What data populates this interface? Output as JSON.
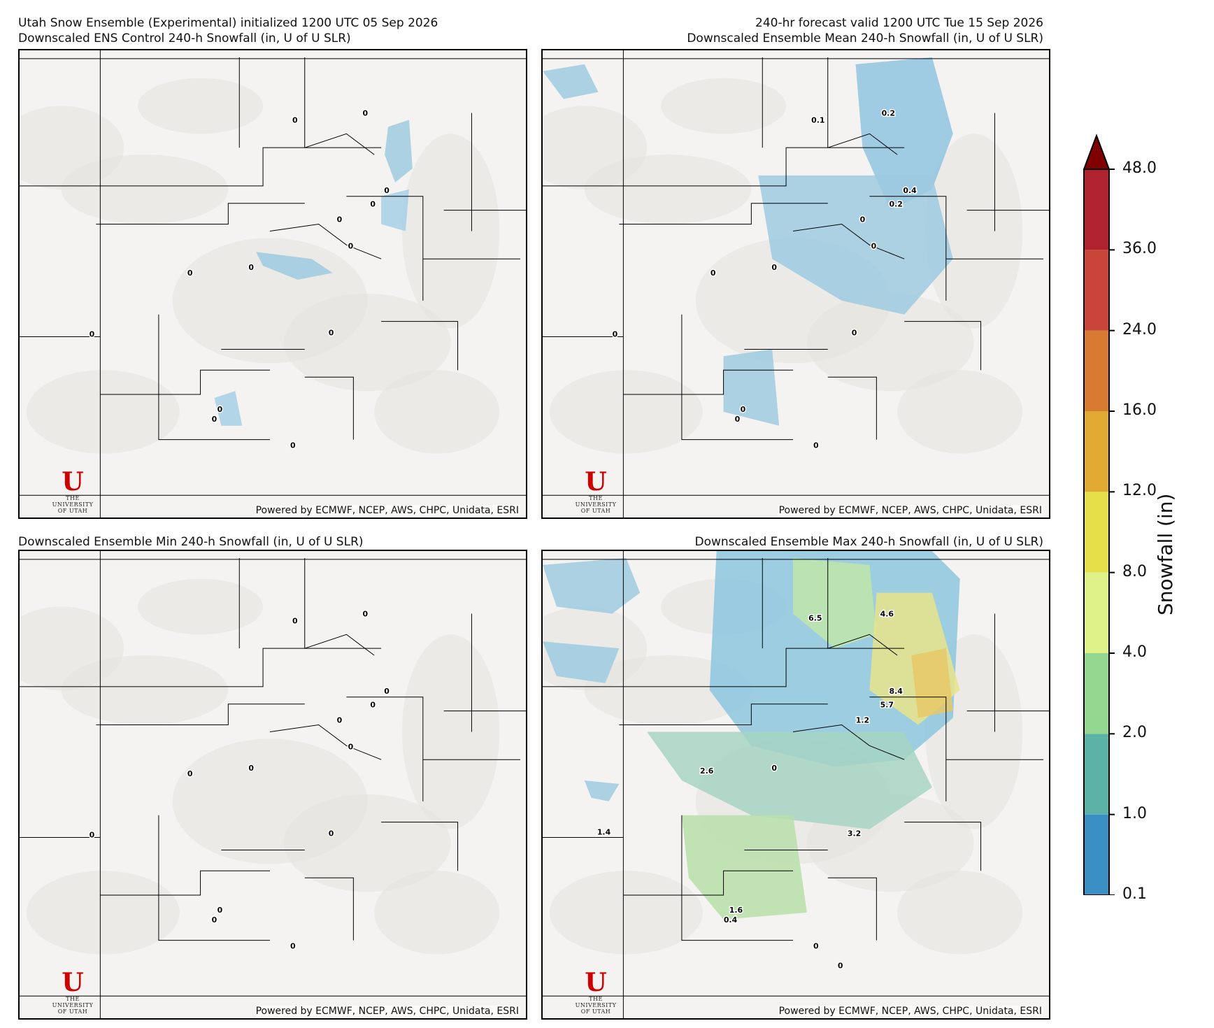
{
  "header": {
    "title_left_line1": "Utah Snow Ensemble (Experimental) initialized 1200 UTC 05 Sep 2026",
    "title_left_line2": "Downscaled ENS Control 240-h Snowfall (in, U of U SLR)",
    "title_right_line1": "240-hr forecast valid 1200 UTC Tue 15 Sep 2026",
    "title_right_line2": "Downscaled Ensemble Mean 240-h Snowfall (in, U of U SLR)",
    "title_bottom_left": "Downscaled Ensemble Min 240-h Snowfall (in, U of U SLR)",
    "title_bottom_right": "Downscaled Ensemble Max 240-h Snowfall (in, U of U SLR)"
  },
  "credit": "Powered by ECMWF, NCEP, AWS, CHPC, Unidata, ESRI",
  "logo": {
    "mark": "U",
    "line1": "THE",
    "line2": "UNIVERSITY",
    "line3": "OF UTAH"
  },
  "panels": [
    {
      "name": "control",
      "labels": [
        "0",
        "0",
        "0",
        "0",
        "0",
        "0",
        "0",
        "0",
        "0",
        "0",
        "0",
        "0",
        "0"
      ]
    },
    {
      "name": "mean",
      "labels": [
        "0.1",
        "0.2",
        "0.4",
        "0.2",
        "0",
        "0",
        "0",
        "0",
        "0",
        "0",
        "0",
        "0",
        "0"
      ]
    },
    {
      "name": "min",
      "labels": [
        "0",
        "0",
        "0",
        "0",
        "0",
        "0",
        "0",
        "0",
        "0",
        "0",
        "0",
        "0",
        "0"
      ]
    },
    {
      "name": "max",
      "labels": [
        "6.5",
        "4.6",
        "8.4",
        "5.7",
        "1.2",
        "2.6",
        "0",
        "1.4",
        "3.2",
        "1.6",
        "0.4",
        "0",
        "0"
      ]
    }
  ],
  "colorbar": {
    "label": "Snowfall (in)",
    "ticks": [
      "0.1",
      "1.0",
      "2.0",
      "4.0",
      "8.0",
      "12.0",
      "16.0",
      "24.0",
      "36.0",
      "48.0"
    ],
    "colors": [
      "#3a8fc4",
      "#5bb3a8",
      "#93d68f",
      "#dff28a",
      "#e6df4a",
      "#e0aa33",
      "#d97a33",
      "#c9453a",
      "#b0222e",
      "#800000"
    ]
  }
}
